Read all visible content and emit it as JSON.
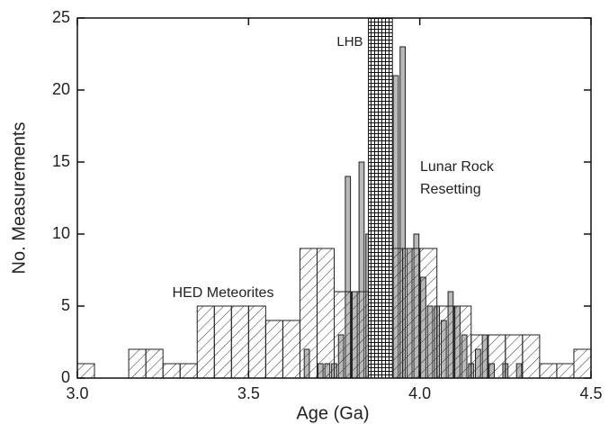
{
  "chart_data": {
    "type": "histogram",
    "xlabel": "Age (Ga)",
    "ylabel": "No. Measurements",
    "xlim": [
      3.0,
      4.5
    ],
    "ylim": [
      0,
      25
    ],
    "xticks": [
      {
        "value": 3,
        "label": "3.0"
      },
      {
        "value": 3.5,
        "label": "3.5"
      },
      {
        "value": 4,
        "label": "4.0"
      },
      {
        "value": 4.5,
        "label": "4.5"
      }
    ],
    "yticks": [
      0,
      5,
      10,
      15,
      20,
      25
    ],
    "series": [
      {
        "name": "Lunar Rock Resetting",
        "color": "#b9b9b9",
        "bins": [
          3.64,
          3.66,
          3.68,
          3.7,
          3.72,
          3.74,
          3.76,
          3.78,
          3.8,
          3.82,
          3.84,
          3.86,
          3.88,
          3.9,
          3.92,
          3.94,
          3.96,
          3.98,
          4.0,
          4.02,
          4.04,
          4.06,
          4.08,
          4.1,
          4.12,
          4.14,
          4.16,
          4.18,
          4.2,
          4.22,
          4.24,
          4.26,
          4.28,
          4.3,
          4.32
        ],
        "values": [
          0,
          2,
          0,
          1,
          1,
          1,
          3,
          14,
          6,
          15,
          10,
          8,
          7,
          10,
          21,
          23,
          9,
          10,
          7,
          5,
          5,
          4,
          6,
          5,
          3,
          1,
          2,
          3,
          1,
          0,
          1,
          0,
          1,
          0
        ]
      },
      {
        "name": "HED Meteorites",
        "color": "#333333",
        "bins": [
          3.0,
          3.05,
          3.1,
          3.15,
          3.2,
          3.25,
          3.3,
          3.35,
          3.4,
          3.45,
          3.5,
          3.55,
          3.6,
          3.65,
          3.7,
          3.75,
          3.8,
          3.85,
          3.9,
          3.95,
          4.0,
          4.05,
          4.1,
          4.15,
          4.2,
          4.25,
          4.3,
          4.35,
          4.4,
          4.45,
          4.5
        ],
        "values": [
          1,
          0,
          0,
          2,
          2,
          1,
          1,
          5,
          5,
          5,
          5,
          4,
          4,
          9,
          9,
          6,
          6,
          6,
          9,
          9,
          9,
          5,
          5,
          3,
          3,
          3,
          3,
          1,
          1,
          2
        ]
      }
    ],
    "band": {
      "label": "LHB",
      "range": [
        3.85,
        3.92
      ]
    },
    "annotations": [
      "HED Meteorites",
      "Lunar Rock",
      "Resetting"
    ]
  }
}
